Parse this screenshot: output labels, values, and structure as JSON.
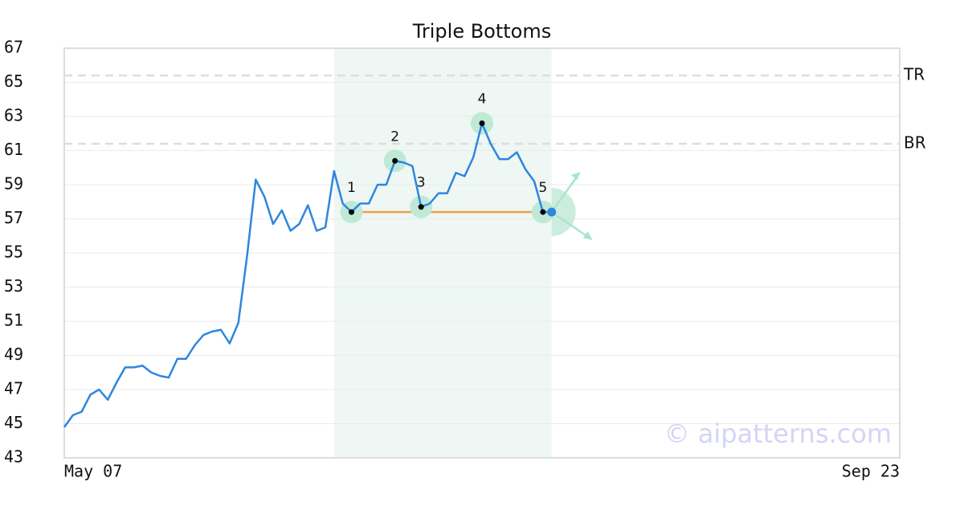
{
  "chart_data": {
    "type": "line",
    "title": "Triple Bottoms",
    "x": [
      0,
      1,
      2,
      3,
      4,
      5,
      6,
      7,
      8,
      9,
      10,
      11,
      12,
      13,
      14,
      15,
      16,
      17,
      18,
      19,
      20,
      21,
      22,
      23,
      24,
      25,
      26,
      27,
      28,
      29,
      30,
      31,
      32,
      33,
      34,
      35,
      36,
      37,
      38,
      39,
      40,
      41,
      42,
      43,
      44,
      45,
      46,
      47,
      48,
      49,
      50,
      51,
      52,
      53,
      54,
      55,
      56
    ],
    "series": [
      {
        "color": "#2e86de",
        "values": [
          44.8,
          45.5,
          45.7,
          46.7,
          47.0,
          46.4,
          47.4,
          48.3,
          48.3,
          48.4,
          48.0,
          47.8,
          47.7,
          48.8,
          48.8,
          49.6,
          50.2,
          50.4,
          50.5,
          49.7,
          50.9,
          54.8,
          59.3,
          58.3,
          56.7,
          57.5,
          56.3,
          56.7,
          57.8,
          56.3,
          56.5,
          59.8,
          57.9,
          57.4,
          57.9,
          57.9,
          59.0,
          59.0,
          60.4,
          60.3,
          60.1,
          57.7,
          57.9,
          58.5,
          58.5,
          59.7,
          59.5,
          60.6,
          62.6,
          61.4,
          60.5,
          60.5,
          60.9,
          59.9,
          59.2,
          57.4,
          57.4
        ]
      }
    ],
    "xlim": [
      0,
      96
    ],
    "xticks": [
      {
        "value": 0,
        "label": "May 07"
      },
      {
        "value": 96,
        "label": "Sep 23"
      }
    ],
    "ylim": [
      43,
      67
    ],
    "yticks": [
      43,
      45,
      47,
      49,
      51,
      53,
      55,
      57,
      59,
      61,
      63,
      65,
      67
    ],
    "grid": true,
    "pattern": {
      "region": [
        31,
        56
      ],
      "points": [
        {
          "label": "1",
          "x": 33,
          "y": 57.4
        },
        {
          "label": "2",
          "x": 38,
          "y": 60.4
        },
        {
          "label": "3",
          "x": 41,
          "y": 57.7
        },
        {
          "label": "4",
          "x": 48,
          "y": 62.6
        },
        {
          "label": "5",
          "x": 55,
          "y": 57.4
        }
      ],
      "neckline": {
        "x": [
          33,
          55
        ],
        "y": 57.4
      },
      "levels": [
        {
          "label": "TR",
          "value": 65.4
        },
        {
          "label": "BR",
          "value": 61.4
        }
      ]
    },
    "watermark": "© aipatterns.com"
  }
}
